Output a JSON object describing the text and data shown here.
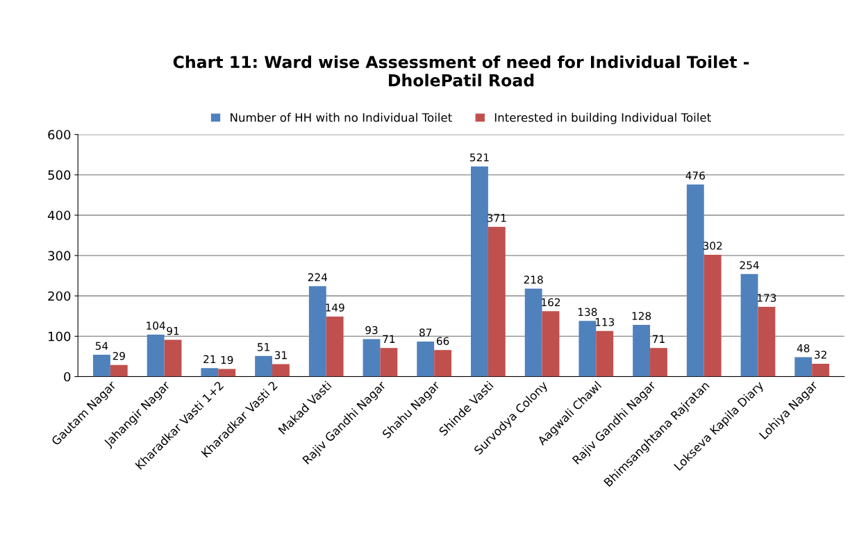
{
  "chart_data": {
    "type": "bar",
    "title": "Chart 11: Ward wise Assessment of need for Individual Toilet -\nDholePatil Road",
    "categories": [
      "Gautam Nagar",
      "Jahangir Nagar",
      "Kharadkar Vasti 1+2",
      "Kharadkar Vasti 2",
      "Makad Vasti",
      "Rajiv Gandhi Nagar",
      "Shahu Nagar",
      "Shinde Vasti",
      "Survodya Colony",
      "Aagwali Chawl",
      "Rajiv Gandhi Nagar",
      "Bhimsanghtana Rajratan",
      "Lokseva Kapila Diary",
      "Lohiya Nagar"
    ],
    "series": [
      {
        "name": "Number of HH with no Individual Toilet",
        "color": "#4f81bd",
        "values": [
          54,
          104,
          21,
          51,
          224,
          93,
          87,
          521,
          218,
          138,
          128,
          476,
          254,
          48
        ]
      },
      {
        "name": "Interested in building Individual Toilet",
        "color": "#c0504d",
        "values": [
          29,
          91,
          19,
          31,
          149,
          71,
          66,
          371,
          162,
          113,
          71,
          302,
          173,
          32
        ]
      }
    ],
    "ylim": [
      0,
      600
    ],
    "yticks": [
      0,
      100,
      200,
      300,
      400,
      500,
      600
    ],
    "grid": "y",
    "legend": "top",
    "data_labels": true
  }
}
